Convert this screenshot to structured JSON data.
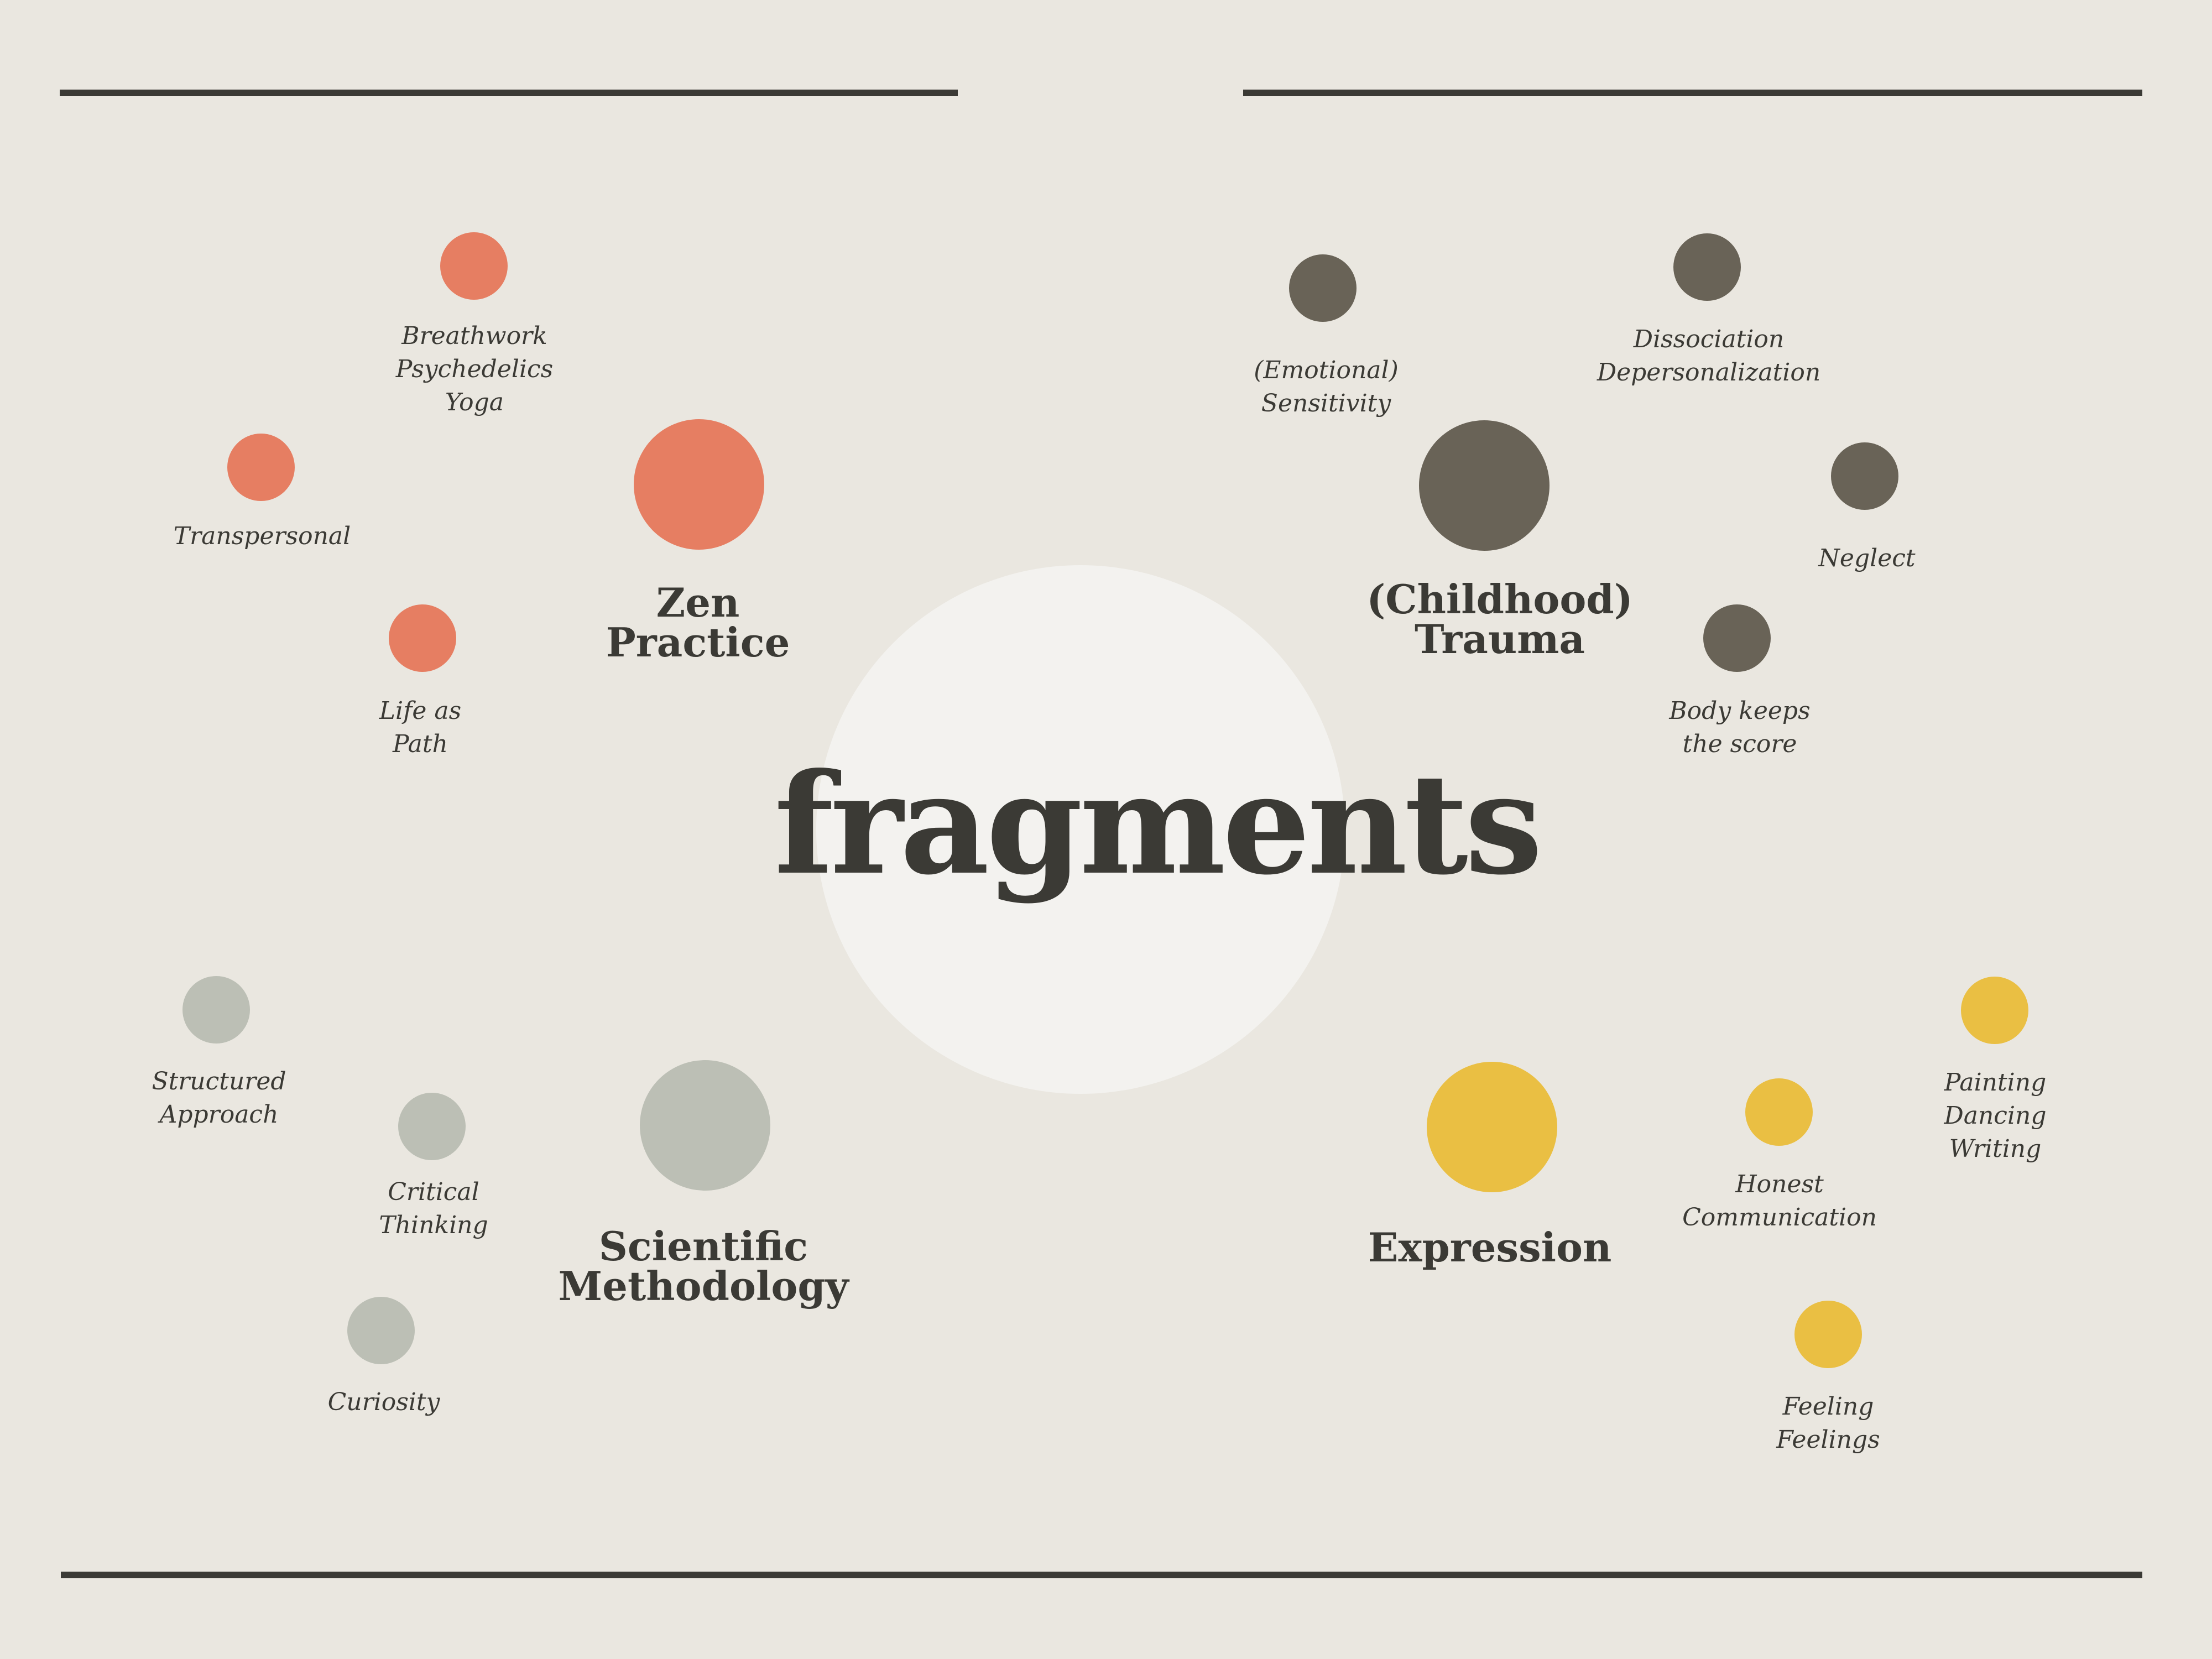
{
  "title": "fragments",
  "colors": {
    "background": "#eae7e0",
    "center": "#f3f2ef",
    "text": "#3b3a35",
    "zen": "#e67e62",
    "trauma": "#696357",
    "science": "#bcbfb5",
    "expression": "#eabf43"
  },
  "clusters": {
    "zen": {
      "hub": "Zen\nPractice",
      "items": [
        "Breathwork\nPsychedelics\nYoga",
        "Transpersonal",
        "Life as\nPath"
      ]
    },
    "trauma": {
      "hub": "(Childhood)\nTrauma",
      "items": [
        "(Emotional)\nSensitivity",
        "Dissociation\nDepersonalization",
        "Neglect",
        "Body keeps\nthe score"
      ]
    },
    "science": {
      "hub": "Scientific\nMethodology",
      "items": [
        "Structured\nApproach",
        "Critical\nThinking",
        "Curiosity"
      ]
    },
    "expression": {
      "hub": "Expression",
      "items": [
        "Painting\nDancing\nWriting",
        "Honest\nCommunication",
        "Feeling\nFeelings"
      ]
    }
  }
}
